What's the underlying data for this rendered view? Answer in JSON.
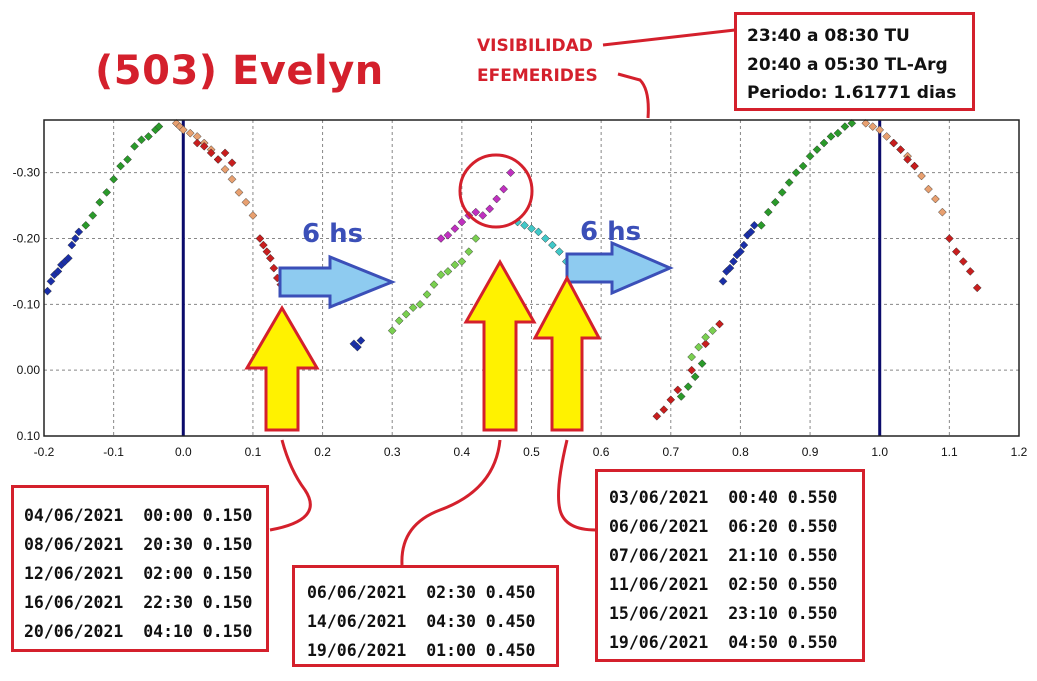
{
  "title": "(503) Evelyn",
  "labels": {
    "visibilidad": "VISIBILIDAD",
    "efemerides": "EFEMERIDES",
    "shift_left": "6 hs",
    "shift_right": "6 hs"
  },
  "visibility_box": {
    "lines": [
      "23:40 a 08:30 TU",
      "20:40 a 05:30 TL-Arg",
      "Periodo: 1.61771 dias"
    ]
  },
  "ephemeris_boxes": [
    {
      "phase": 0.15,
      "lines": [
        "04/06/2021  00:00 0.150",
        "08/06/2021  20:30 0.150",
        "12/06/2021  02:00 0.150",
        "16/06/2021  22:30 0.150",
        "20/06/2021  04:10 0.150"
      ]
    },
    {
      "phase": 0.45,
      "lines": [
        "06/06/2021  02:30 0.450",
        "14/06/2021  04:30 0.450",
        "19/06/2021  01:00 0.450"
      ]
    },
    {
      "phase": 0.55,
      "lines": [
        "03/06/2021  00:40 0.550",
        "06/06/2021  06:20 0.550",
        "07/06/2021  21:10 0.550",
        "11/06/2021  02:50 0.550",
        "15/06/2021  23:10 0.550",
        "19/06/2021  04:50 0.550"
      ]
    }
  ],
  "colors": {
    "accent": "#d4202c",
    "arrow_fill": "#8ecbf0",
    "arrow_stroke": "#3b4fb8",
    "up_arrow_fill": "#fff200",
    "phase_line": "#0b0b6b",
    "hs_text": "#3b4fb8"
  },
  "chart_data": {
    "type": "scatter",
    "xlim": [
      -0.2,
      1.2
    ],
    "ylim": [
      0.1,
      -0.38
    ],
    "xticks": [
      "-0.2",
      "-0.1",
      "0.0",
      "0.1",
      "0.2",
      "0.3",
      "0.4",
      "0.5",
      "0.6",
      "0.7",
      "0.8",
      "0.9",
      "1.0",
      "1.1",
      "1.2"
    ],
    "xtick_values": [
      -0.2,
      -0.1,
      0.0,
      0.1,
      0.2,
      0.3,
      0.4,
      0.5,
      0.6,
      0.7,
      0.8,
      0.9,
      1.0,
      1.1,
      1.2
    ],
    "yticks": [
      "-0.30",
      "-0.20",
      "-0.10",
      "0.00",
      "0.10"
    ],
    "ytick_values": [
      -0.3,
      -0.2,
      -0.1,
      0.0,
      0.1
    ],
    "grid": true,
    "vertical_lines": [
      0.0,
      1.0
    ],
    "series": [
      {
        "color": "#1a2fa8",
        "x": [
          -0.195,
          -0.19,
          -0.185,
          -0.18,
          -0.175,
          -0.17,
          -0.165,
          -0.16,
          -0.155,
          -0.15,
          0.245,
          0.25,
          0.255,
          0.775,
          0.78,
          0.785,
          0.79,
          0.795,
          0.8,
          0.805,
          0.81,
          0.815,
          0.82
        ],
        "y": [
          -0.12,
          -0.135,
          -0.145,
          -0.15,
          -0.16,
          -0.165,
          -0.17,
          -0.19,
          -0.2,
          -0.21,
          -0.04,
          -0.035,
          -0.045,
          -0.135,
          -0.15,
          -0.155,
          -0.165,
          -0.175,
          -0.18,
          -0.19,
          -0.205,
          -0.21,
          -0.22
        ]
      },
      {
        "color": "#2a9a2a",
        "x": [
          -0.14,
          -0.13,
          -0.12,
          -0.11,
          -0.1,
          -0.09,
          -0.08,
          -0.07,
          -0.06,
          -0.05,
          -0.04,
          -0.035,
          0.83,
          0.84,
          0.85,
          0.86,
          0.87,
          0.88,
          0.89,
          0.9,
          0.91,
          0.92,
          0.93,
          0.94,
          0.95,
          0.96,
          0.715,
          0.725,
          0.735,
          0.745
        ],
        "y": [
          -0.22,
          -0.235,
          -0.255,
          -0.27,
          -0.29,
          -0.31,
          -0.32,
          -0.34,
          -0.35,
          -0.355,
          -0.365,
          -0.37,
          -0.22,
          -0.24,
          -0.255,
          -0.27,
          -0.285,
          -0.3,
          -0.31,
          -0.325,
          -0.335,
          -0.345,
          -0.355,
          -0.36,
          -0.37,
          -0.375,
          0.04,
          0.025,
          0.01,
          -0.01
        ]
      },
      {
        "color": "#e8a070",
        "x": [
          -0.01,
          -0.005,
          0.0,
          0.01,
          0.02,
          0.03,
          0.04,
          0.05,
          0.06,
          0.07,
          0.08,
          0.09,
          0.1,
          0.98,
          0.99,
          1.0,
          1.01,
          1.02,
          1.03,
          1.04,
          1.05,
          1.06,
          1.07,
          1.08,
          1.09
        ],
        "y": [
          -0.375,
          -0.37,
          -0.365,
          -0.36,
          -0.355,
          -0.345,
          -0.335,
          -0.32,
          -0.305,
          -0.29,
          -0.27,
          -0.255,
          -0.235,
          -0.375,
          -0.37,
          -0.365,
          -0.355,
          -0.345,
          -0.335,
          -0.325,
          -0.31,
          -0.295,
          -0.275,
          -0.26,
          -0.24
        ]
      },
      {
        "color": "#c81e1e",
        "x": [
          0.02,
          0.03,
          0.04,
          0.05,
          0.06,
          0.07,
          0.11,
          0.115,
          0.12,
          0.125,
          0.13,
          0.135,
          0.14,
          1.02,
          1.03,
          1.04,
          1.05,
          1.1,
          1.11,
          1.12,
          1.13,
          1.14,
          0.68,
          0.69,
          0.7,
          0.71,
          0.73,
          0.75,
          0.77
        ],
        "y": [
          -0.345,
          -0.34,
          -0.33,
          -0.32,
          -0.33,
          -0.315,
          -0.2,
          -0.19,
          -0.18,
          -0.17,
          -0.155,
          -0.14,
          -0.13,
          -0.345,
          -0.335,
          -0.32,
          -0.31,
          -0.2,
          -0.18,
          -0.165,
          -0.15,
          -0.125,
          0.07,
          0.06,
          0.045,
          0.03,
          0.0,
          -0.04,
          -0.07
        ]
      },
      {
        "color": "#7ad050",
        "x": [
          0.3,
          0.31,
          0.32,
          0.33,
          0.34,
          0.35,
          0.36,
          0.37,
          0.38,
          0.39,
          0.4,
          0.41,
          0.42,
          0.73,
          0.74,
          0.75,
          0.76
        ],
        "y": [
          -0.06,
          -0.075,
          -0.085,
          -0.095,
          -0.1,
          -0.115,
          -0.13,
          -0.145,
          -0.15,
          -0.16,
          -0.165,
          -0.18,
          -0.2,
          -0.02,
          -0.035,
          -0.05,
          -0.06
        ]
      },
      {
        "color": "#c030c0",
        "x": [
          0.37,
          0.38,
          0.39,
          0.4,
          0.41,
          0.42,
          0.43,
          0.44,
          0.45,
          0.46,
          0.47
        ],
        "y": [
          -0.2,
          -0.205,
          -0.215,
          -0.225,
          -0.235,
          -0.24,
          -0.235,
          -0.245,
          -0.26,
          -0.275,
          -0.3
        ]
      },
      {
        "color": "#40c8c8",
        "x": [
          0.48,
          0.49,
          0.5,
          0.51,
          0.52,
          0.53,
          0.54,
          0.55
        ],
        "y": [
          -0.225,
          -0.22,
          -0.215,
          -0.21,
          -0.2,
          -0.19,
          -0.18,
          -0.165
        ]
      }
    ]
  }
}
